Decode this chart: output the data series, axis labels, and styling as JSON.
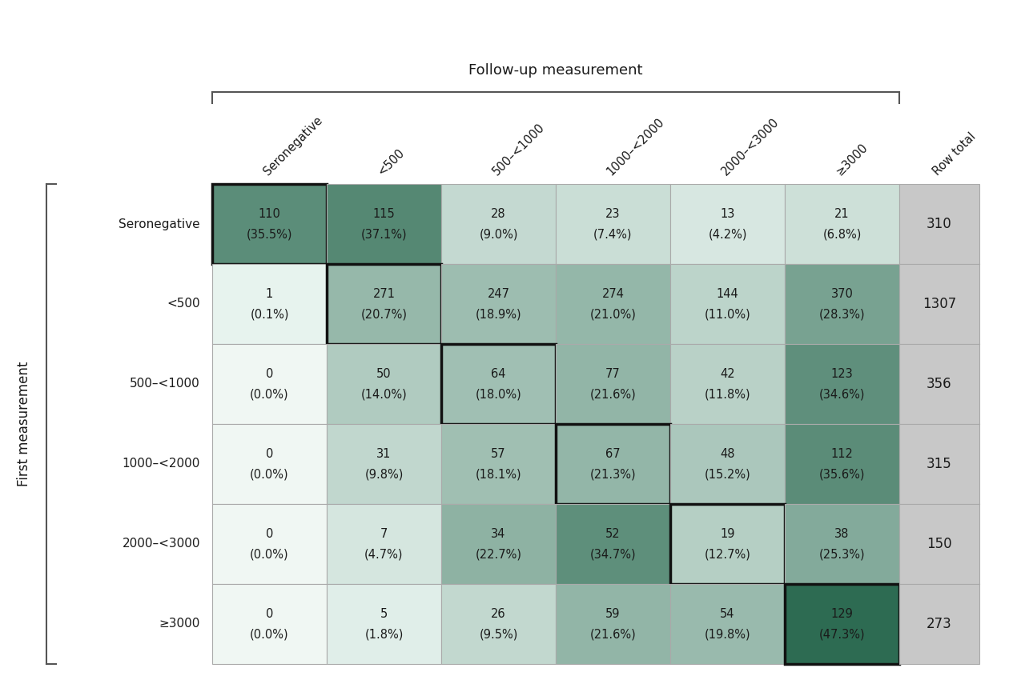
{
  "row_labels": [
    "Seronegative",
    "<500",
    "500–<1000",
    "1000–<2000",
    "2000–<3000",
    "≥3000"
  ],
  "col_labels": [
    "Seronegative",
    "<500",
    "500–<1000",
    "1000–<2000",
    "2000–<3000",
    "≥3000"
  ],
  "values": [
    [
      110,
      115,
      28,
      23,
      13,
      21
    ],
    [
      1,
      271,
      247,
      274,
      144,
      370
    ],
    [
      0,
      50,
      64,
      77,
      42,
      123
    ],
    [
      0,
      31,
      57,
      67,
      48,
      112
    ],
    [
      0,
      7,
      34,
      52,
      19,
      38
    ],
    [
      0,
      5,
      26,
      59,
      54,
      129
    ]
  ],
  "percentages": [
    [
      "35.5%",
      "37.1%",
      "9.0%",
      "7.4%",
      "4.2%",
      "6.8%"
    ],
    [
      "0.1%",
      "20.7%",
      "18.9%",
      "21.0%",
      "11.0%",
      "28.3%"
    ],
    [
      "0.0%",
      "14.0%",
      "18.0%",
      "21.6%",
      "11.8%",
      "34.6%"
    ],
    [
      "0.0%",
      "9.8%",
      "18.1%",
      "21.3%",
      "15.2%",
      "35.6%"
    ],
    [
      "0.0%",
      "4.7%",
      "22.7%",
      "34.7%",
      "12.7%",
      "25.3%"
    ],
    [
      "0.0%",
      "1.8%",
      "9.5%",
      "21.6%",
      "19.8%",
      "47.3%"
    ]
  ],
  "percentages_num": [
    [
      35.5,
      37.1,
      9.0,
      7.4,
      4.2,
      6.8
    ],
    [
      0.1,
      20.7,
      18.9,
      21.0,
      11.0,
      28.3
    ],
    [
      0.0,
      14.0,
      18.0,
      21.6,
      11.8,
      34.6
    ],
    [
      0.0,
      9.8,
      18.1,
      21.3,
      15.2,
      35.6
    ],
    [
      0.0,
      4.7,
      22.7,
      34.7,
      12.7,
      25.3
    ],
    [
      0.0,
      1.8,
      9.5,
      21.6,
      19.8,
      47.3
    ]
  ],
  "row_totals": [
    310,
    1307,
    356,
    315,
    150,
    273
  ],
  "col_header": "Follow-up measurement",
  "row_header": "First measurement",
  "row_total_label": "Row total",
  "light_green_rgb": [
    232,
    244,
    239
  ],
  "dark_green_rgb": [
    45,
    107,
    82
  ],
  "zero_color": "#f0f7f3",
  "gray_total": "#c8c8c8",
  "max_pct": 47.3,
  "cell_text_fontsize": 10.5,
  "total_fontsize": 12,
  "header_fontsize": 13,
  "col_label_fontsize": 10.5,
  "row_label_fontsize": 11,
  "axis_label_fontsize": 12
}
